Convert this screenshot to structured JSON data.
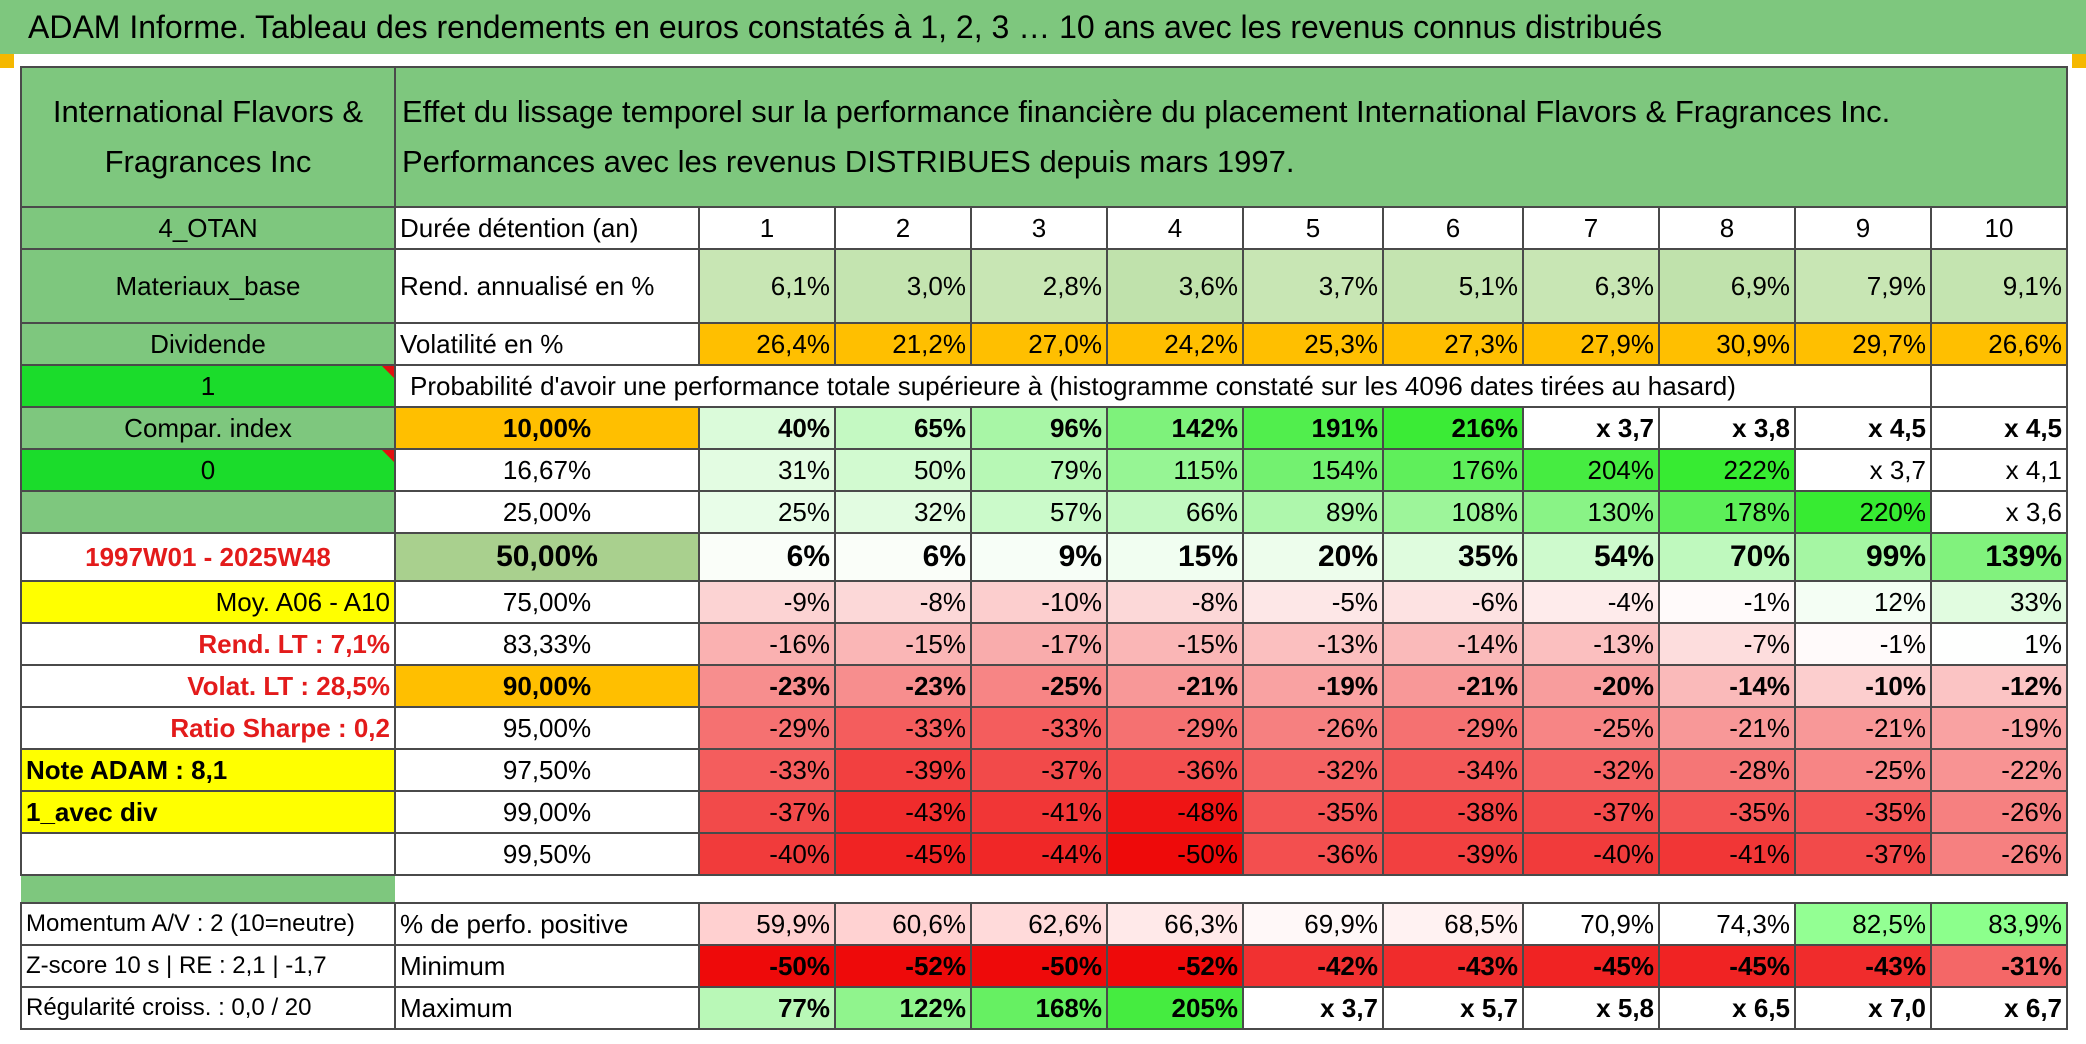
{
  "title": "ADAM Informe. Tableau des rendements en euros constatés à 1, 2, 3 … 10 ans avec les revenus connus distribués",
  "header": {
    "company": "International Flavors & Fragrances Inc",
    "description": "Effet du lissage temporel sur la performance financière du placement International Flavors & Fragrances Inc. Performances avec les revenus DISTRIBUES depuis mars 1997."
  },
  "colors": {
    "header_green": "#7ec77e",
    "bright_green": "#1bdc2b",
    "orange": "#ffbf00",
    "yellow": "#ffff00",
    "red_text": "#e31b1b"
  },
  "rows_top": {
    "duration": {
      "left": "4_OTAN",
      "label": "Durée détention (an)",
      "values": [
        "1",
        "2",
        "3",
        "4",
        "5",
        "6",
        "7",
        "8",
        "9",
        "10"
      ]
    },
    "rendement": {
      "left": "Materiaux_base",
      "label": "Rend. annualisé en %",
      "values": [
        "6,1%",
        "3,0%",
        "2,8%",
        "3,6%",
        "3,7%",
        "5,1%",
        "6,3%",
        "6,9%",
        "7,9%",
        "9,1%"
      ]
    },
    "volatilite": {
      "left": "Dividende",
      "label": "Volatilité en %",
      "values": [
        "26,4%",
        "21,2%",
        "27,0%",
        "24,2%",
        "25,3%",
        "27,3%",
        "27,9%",
        "30,9%",
        "29,7%",
        "26,6%"
      ]
    },
    "proba": {
      "left": "1",
      "label": "Probabilité d'avoir une performance totale supérieure à (histogramme constaté sur les 4096 dates tirées au hasard)"
    }
  },
  "prob_rows": [
    {
      "left": "Compar. index",
      "pct": "10,00%",
      "values": [
        "40%",
        "65%",
        "96%",
        "142%",
        "191%",
        "216%",
        "x 3,7",
        "x 3,8",
        "x 4,5",
        "x 4,5"
      ]
    },
    {
      "left": "0",
      "pct": "16,67%",
      "values": [
        "31%",
        "50%",
        "79%",
        "115%",
        "154%",
        "176%",
        "204%",
        "222%",
        "x 3,7",
        "x 4,1"
      ]
    },
    {
      "left": "",
      "pct": "25,00%",
      "values": [
        "25%",
        "32%",
        "57%",
        "66%",
        "89%",
        "108%",
        "130%",
        "178%",
        "220%",
        "x 3,6"
      ]
    },
    {
      "left": "1997W01 - 2025W48",
      "pct": "50,00%",
      "values": [
        "6%",
        "6%",
        "9%",
        "15%",
        "20%",
        "35%",
        "54%",
        "70%",
        "99%",
        "139%"
      ]
    },
    {
      "left": "Moy. A06 - A10",
      "pct": "75,00%",
      "values": [
        "-9%",
        "-8%",
        "-10%",
        "-8%",
        "-5%",
        "-6%",
        "-4%",
        "-1%",
        "12%",
        "33%"
      ]
    },
    {
      "left": "Rend. LT :   7,1%",
      "pct": "83,33%",
      "values": [
        "-16%",
        "-15%",
        "-17%",
        "-15%",
        "-13%",
        "-14%",
        "-13%",
        "-7%",
        "-1%",
        "1%"
      ]
    },
    {
      "left": "Volat. LT :   28,5%",
      "pct": "90,00%",
      "values": [
        "-23%",
        "-23%",
        "-25%",
        "-21%",
        "-19%",
        "-21%",
        "-20%",
        "-14%",
        "-10%",
        "-12%"
      ]
    },
    {
      "left": "Ratio Sharpe :    0,2",
      "pct": "95,00%",
      "values": [
        "-29%",
        "-33%",
        "-33%",
        "-29%",
        "-26%",
        "-29%",
        "-25%",
        "-21%",
        "-21%",
        "-19%"
      ]
    },
    {
      "left": "Note ADAM : 8,1",
      "pct": "97,50%",
      "values": [
        "-33%",
        "-39%",
        "-37%",
        "-36%",
        "-32%",
        "-34%",
        "-32%",
        "-28%",
        "-25%",
        "-22%"
      ]
    },
    {
      "left": "1_avec div",
      "pct": "99,00%",
      "values": [
        "-37%",
        "-43%",
        "-41%",
        "-48%",
        "-35%",
        "-38%",
        "-37%",
        "-35%",
        "-35%",
        "-26%"
      ]
    },
    {
      "left": "",
      "pct": "99,50%",
      "values": [
        "-40%",
        "-45%",
        "-44%",
        "-50%",
        "-36%",
        "-39%",
        "-40%",
        "-41%",
        "-37%",
        "-26%"
      ]
    }
  ],
  "bottom_rows": [
    {
      "left": "Momentum A/V : 2 (10=neutre)",
      "label": "% de perfo. positive",
      "values": [
        "59,9%",
        "60,6%",
        "62,6%",
        "66,3%",
        "69,9%",
        "68,5%",
        "70,9%",
        "74,3%",
        "82,5%",
        "83,9%"
      ]
    },
    {
      "left": "Z-score 10 s | RE : 2,1 | -1,7",
      "label": "Minimum",
      "values": [
        "-50%",
        "-52%",
        "-50%",
        "-52%",
        "-42%",
        "-43%",
        "-45%",
        "-45%",
        "-43%",
        "-31%"
      ]
    },
    {
      "left": "Régularité croiss. : 0,0 / 20",
      "label": "Maximum",
      "values": [
        "77%",
        "122%",
        "168%",
        "205%",
        "x 3,7",
        "x 5,7",
        "x 5,8",
        "x 6,5",
        "x 7,0",
        "x 6,7"
      ]
    }
  ]
}
